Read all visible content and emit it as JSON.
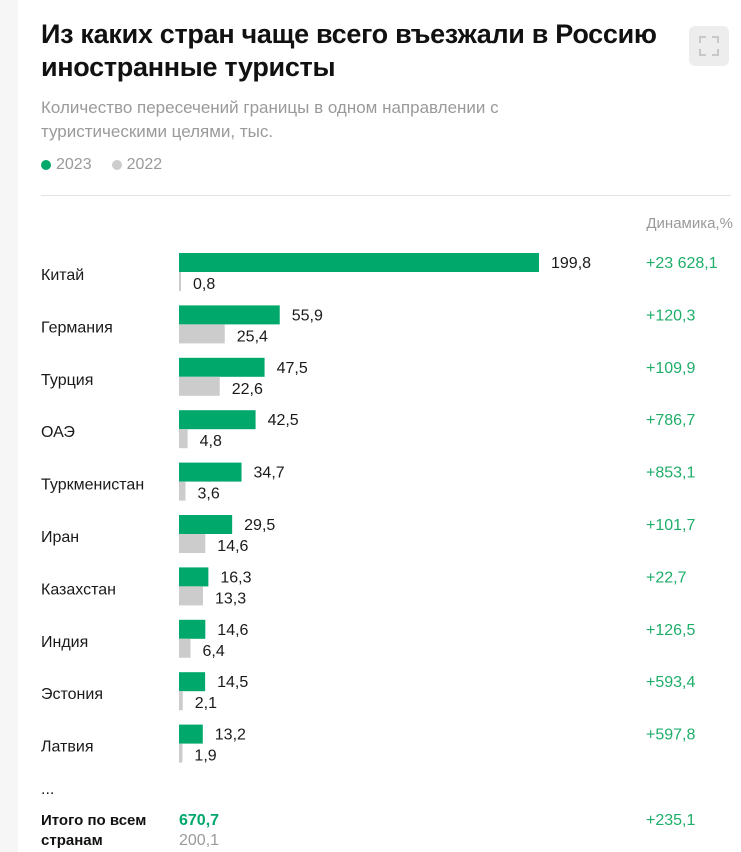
{
  "title": "Из каких стран чаще всего въезжали в Россию иностранные туристы",
  "subtitle": "Количество пересечений границы в одном направлении с туристическими целями, тыс.",
  "legend": [
    {
      "name": "2023",
      "color": "#00a86b"
    },
    {
      "name": "2022",
      "color": "#cccccc"
    }
  ],
  "dynamics_header": "Динамика,%",
  "ellipsis": "...",
  "colors": {
    "green": "#00a86b",
    "gray": "#cccccc",
    "dyn": "#1fae6a"
  },
  "chart_data": {
    "type": "bar",
    "orientation": "horizontal",
    "categories": [
      "Китай",
      "Германия",
      "Турция",
      "ОАЭ",
      "Туркменистан",
      "Иран",
      "Казахстан",
      "Индия",
      "Эстония",
      "Латвия"
    ],
    "series": [
      {
        "name": "2023",
        "values": [
          199.8,
          55.9,
          47.5,
          42.5,
          34.7,
          29.5,
          16.3,
          14.6,
          14.5,
          13.2
        ]
      },
      {
        "name": "2022",
        "values": [
          0.8,
          25.4,
          22.6,
          4.8,
          3.6,
          14.6,
          13.3,
          6.4,
          2.1,
          1.9
        ]
      }
    ],
    "value_labels": {
      "2023": [
        "199,8",
        "55,9",
        "47,5",
        "42,5",
        "34,7",
        "29,5",
        "16,3",
        "14,6",
        "14,5",
        "13,2"
      ],
      "2022": [
        "0,8",
        "25,4",
        "22,6",
        "4,8",
        "3,6",
        "14,6",
        "13,3",
        "6,4",
        "2,1",
        "1,9"
      ]
    },
    "dynamics": [
      "+23 628,1",
      "+120,3",
      "+109,9",
      "+786,7",
      "+853,1",
      "+101,7",
      "+22,7",
      "+126,5",
      "+593,4",
      "+597,8"
    ],
    "total": {
      "label_lines": [
        "Итого по всем",
        "странам"
      ],
      "value_2023": "670,7",
      "value_2022": "200,1",
      "dynamics": "+235,1"
    }
  }
}
